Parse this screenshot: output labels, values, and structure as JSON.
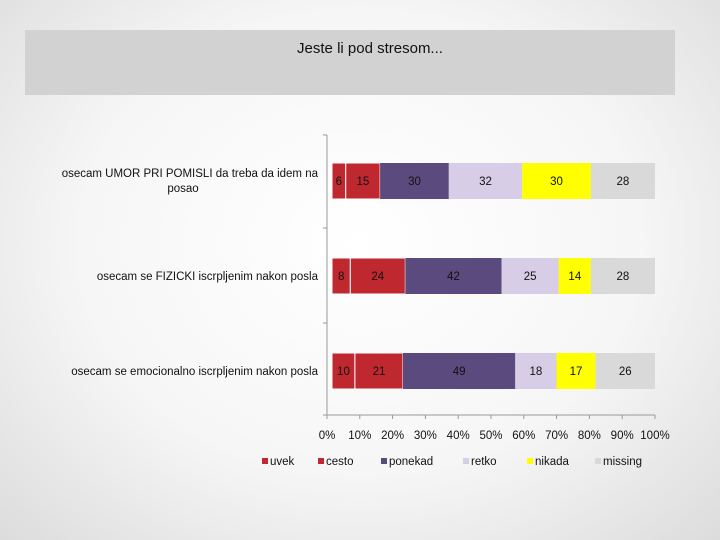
{
  "chart_data": {
    "type": "bar",
    "stacked": true,
    "normalized": true,
    "title": "Jeste li pod stresom...",
    "categories": [
      "osecam UMOR PRI POMISLI da treba da idem na posao",
      "osecam se FIZICKI iscrpljenim nakon posla",
      "osecam se emocionalno iscrpljenim nakon posla"
    ],
    "series": [
      {
        "name": "uvek",
        "color": "#c0282f",
        "values": [
          6,
          8,
          10
        ]
      },
      {
        "name": "cesto",
        "color": "#c0282f",
        "values": [
          15,
          24,
          21
        ]
      },
      {
        "name": "ponekad",
        "color": "#5b4a7d",
        "values": [
          30,
          42,
          49
        ]
      },
      {
        "name": "retko",
        "color": "#d7cde6",
        "values": [
          32,
          25,
          18
        ]
      },
      {
        "name": "nikada",
        "color": "#ffff00",
        "values": [
          30,
          14,
          17
        ]
      },
      {
        "name": "missing",
        "color": "#d9d9d9",
        "values": [
          28,
          28,
          26
        ]
      }
    ],
    "x_ticks": [
      "0%",
      "10%",
      "20%",
      "30%",
      "40%",
      "50%",
      "60%",
      "70%",
      "80%",
      "90%",
      "100%"
    ],
    "xlim": [
      0,
      100
    ],
    "grid": false,
    "legend": "bottom"
  }
}
